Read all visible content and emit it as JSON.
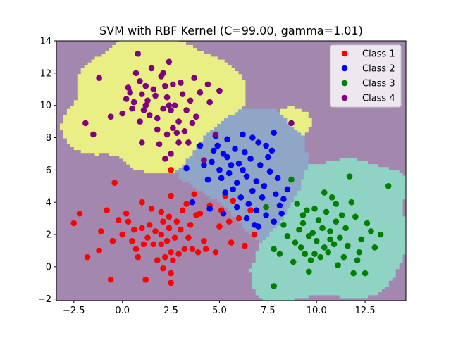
{
  "chart_data": {
    "type": "scatter",
    "title": "SVM with RBF Kernel (C=99.00, gamma=1.01)",
    "xlabel": "",
    "ylabel": "",
    "xlim": [
      -3.4,
      14.6
    ],
    "ylim": [
      -2.1,
      14.0
    ],
    "xticks": [
      -2.5,
      0.0,
      2.5,
      5.0,
      7.5,
      10.0,
      12.5
    ],
    "xtick_labels": [
      "−2.5",
      "0.0",
      "2.5",
      "5.0",
      "7.5",
      "10.0",
      "12.5"
    ],
    "yticks": [
      -2,
      0,
      2,
      4,
      6,
      8,
      10,
      12,
      14
    ],
    "ytick_labels": [
      "−2",
      "0",
      "2",
      "4",
      "6",
      "8",
      "10",
      "12",
      "14"
    ],
    "grid": false,
    "legend_position": "top-right",
    "background_color": "#a487ae",
    "series": [
      {
        "name": "Class 1",
        "color": "#ff0000",
        "region_color": null,
        "points": [
          [
            -2.5,
            2.7
          ],
          [
            -2.2,
            3.3
          ],
          [
            -1.8,
            0.6
          ],
          [
            -1.2,
            1.0
          ],
          [
            -1.1,
            2.2
          ],
          [
            -0.8,
            3.5
          ],
          [
            -0.6,
            -0.8
          ],
          [
            -0.5,
            1.6
          ],
          [
            -0.4,
            5.2
          ],
          [
            -0.2,
            2.9
          ],
          [
            0.0,
            2.0
          ],
          [
            0.2,
            3.3
          ],
          [
            0.3,
            2.8
          ],
          [
            0.5,
            1.6
          ],
          [
            0.6,
            2.3
          ],
          [
            0.7,
            1.1
          ],
          [
            0.8,
            0.6
          ],
          [
            1.0,
            2.4
          ],
          [
            1.0,
            4.0
          ],
          [
            1.1,
            1.4
          ],
          [
            1.2,
            -0.8
          ],
          [
            1.3,
            1.8
          ],
          [
            1.4,
            2.6
          ],
          [
            1.5,
            3.6
          ],
          [
            1.6,
            1.4
          ],
          [
            1.7,
            2.2
          ],
          [
            1.8,
            0.4
          ],
          [
            2.0,
            3.4
          ],
          [
            2.0,
            2.0
          ],
          [
            2.0,
            1.4
          ],
          [
            2.1,
            2.8
          ],
          [
            2.1,
            -0.1
          ],
          [
            2.2,
            0.6
          ],
          [
            2.3,
            1.6
          ],
          [
            2.4,
            2.4
          ],
          [
            2.4,
            3.1
          ],
          [
            2.5,
            0.9
          ],
          [
            2.5,
            -0.4
          ],
          [
            2.5,
            -1.0
          ],
          [
            2.5,
            4.4
          ],
          [
            2.5,
            6.0
          ],
          [
            2.6,
            0.4
          ],
          [
            2.7,
            1.8
          ],
          [
            2.8,
            2.8
          ],
          [
            2.9,
            0.8
          ],
          [
            3.0,
            2.3
          ],
          [
            3.1,
            3.5
          ],
          [
            3.2,
            1.1
          ],
          [
            3.3,
            3.9
          ],
          [
            3.4,
            1.8
          ],
          [
            3.5,
            2.6
          ],
          [
            3.6,
            1.1
          ],
          [
            3.7,
            4.5
          ],
          [
            3.8,
            3.2
          ],
          [
            3.9,
            0.9
          ],
          [
            4.0,
            3.3
          ],
          [
            4.2,
            1.6
          ],
          [
            4.3,
            1.1
          ],
          [
            4.5,
            3.8
          ],
          [
            4.8,
            0.9
          ],
          [
            5.0,
            2.5
          ],
          [
            5.1,
            3.5
          ],
          [
            5.3,
            4.4
          ],
          [
            5.5,
            2.8
          ],
          [
            5.7,
            4.1
          ],
          [
            6.0,
            3.0
          ],
          [
            6.3,
            1.3
          ],
          [
            6.6,
            3.5
          ],
          [
            6.8,
            2.0
          ],
          [
            5.6,
            1.5
          ]
        ]
      },
      {
        "name": "Class 2",
        "color": "#0000ff",
        "region_color": "#8fa6c7",
        "points": [
          [
            3.3,
            6.1
          ],
          [
            3.6,
            4.0
          ],
          [
            4.0,
            7.5
          ],
          [
            4.2,
            6.3
          ],
          [
            4.4,
            5.4
          ],
          [
            4.5,
            3.6
          ],
          [
            4.6,
            6.5
          ],
          [
            4.8,
            8.1
          ],
          [
            4.9,
            7.5
          ],
          [
            5.0,
            6.0
          ],
          [
            5.1,
            5.5
          ],
          [
            5.2,
            7.0
          ],
          [
            5.3,
            4.6
          ],
          [
            5.4,
            6.8
          ],
          [
            5.5,
            5.8
          ],
          [
            5.6,
            6.3
          ],
          [
            5.7,
            4.8
          ],
          [
            5.8,
            7.3
          ],
          [
            5.9,
            5.2
          ],
          [
            6.0,
            6.4
          ],
          [
            6.1,
            4.3
          ],
          [
            6.2,
            8.2
          ],
          [
            6.3,
            7.1
          ],
          [
            6.4,
            5.6
          ],
          [
            6.5,
            3.9
          ],
          [
            6.6,
            6.7
          ],
          [
            6.7,
            4.7
          ],
          [
            6.8,
            2.6
          ],
          [
            6.9,
            5.3
          ],
          [
            7.0,
            7.7
          ],
          [
            7.1,
            6.3
          ],
          [
            7.2,
            4.3
          ],
          [
            7.3,
            5.0
          ],
          [
            7.4,
            7.5
          ],
          [
            7.5,
            6.8
          ],
          [
            7.6,
            5.9
          ],
          [
            7.7,
            7.2
          ],
          [
            7.8,
            8.3
          ],
          [
            7.9,
            4.5
          ],
          [
            8.0,
            5.5
          ],
          [
            8.1,
            3.8
          ],
          [
            8.3,
            4.2
          ],
          [
            8.5,
            4.8
          ],
          [
            5.9,
            3.7
          ],
          [
            6.2,
            6.0
          ],
          [
            6.7,
            8.0
          ],
          [
            5.4,
            7.9
          ],
          [
            4.7,
            7.2
          ],
          [
            5.2,
            3.3
          ],
          [
            6.9,
            3.5
          ],
          [
            7.4,
            3.2
          ],
          [
            7.8,
            2.8
          ],
          [
            7.0,
            2.5
          ],
          [
            8.2,
            3.3
          ],
          [
            6.4,
            3.0
          ]
        ]
      },
      {
        "name": "Class 3",
        "color": "#008000",
        "region_color": "#8fd3c4",
        "points": [
          [
            7.4,
            3.7
          ],
          [
            7.8,
            1.1
          ],
          [
            7.8,
            -1.2
          ],
          [
            8.1,
            0.8
          ],
          [
            8.3,
            2.6
          ],
          [
            8.5,
            1.9
          ],
          [
            8.7,
            5.4
          ],
          [
            8.8,
            0.3
          ],
          [
            9.0,
            3.9
          ],
          [
            9.1,
            2.3
          ],
          [
            9.2,
            1.2
          ],
          [
            9.3,
            2.7
          ],
          [
            9.4,
            0.8
          ],
          [
            9.5,
            3.5
          ],
          [
            9.6,
            1.9
          ],
          [
            9.7,
            0.4
          ],
          [
            9.8,
            2.1
          ],
          [
            9.9,
            3.6
          ],
          [
            10.0,
            1.6
          ],
          [
            10.1,
            2.9
          ],
          [
            10.2,
            0.6
          ],
          [
            10.3,
            2.4
          ],
          [
            10.4,
            1.2
          ],
          [
            10.5,
            3.4
          ],
          [
            10.6,
            0.9
          ],
          [
            10.7,
            2.2
          ],
          [
            10.8,
            4.3
          ],
          [
            10.9,
            1.4
          ],
          [
            11.0,
            2.8
          ],
          [
            11.1,
            0.1
          ],
          [
            11.2,
            1.8
          ],
          [
            11.3,
            3.2
          ],
          [
            11.4,
            0.6
          ],
          [
            11.5,
            2.4
          ],
          [
            11.6,
            1.3
          ],
          [
            11.8,
            4.0
          ],
          [
            12.0,
            3.1
          ],
          [
            12.1,
            0.4
          ],
          [
            12.3,
            1.7
          ],
          [
            12.5,
            -0.4
          ],
          [
            12.6,
            2.7
          ],
          [
            12.8,
            2.2
          ],
          [
            13.0,
            1.2
          ],
          [
            13.3,
            2.0
          ],
          [
            13.7,
            5.0
          ],
          [
            11.7,
            5.6
          ],
          [
            10.4,
            4.6
          ],
          [
            9.3,
            3.2
          ],
          [
            8.9,
            1.5
          ],
          [
            9.9,
            0.8
          ],
          [
            11.0,
            3.9
          ],
          [
            12.2,
            0.9
          ],
          [
            10.7,
            1.7
          ],
          [
            9.6,
            -0.3
          ],
          [
            11.9,
            -0.4
          ]
        ]
      },
      {
        "name": "Class 4",
        "color": "#800080",
        "region_color": "#eaef85",
        "points": [
          [
            -1.9,
            8.9
          ],
          [
            -1.5,
            8.2
          ],
          [
            -1.2,
            11.7
          ],
          [
            -0.6,
            9.3
          ],
          [
            0.0,
            9.5
          ],
          [
            0.2,
            10.4
          ],
          [
            0.3,
            11.1
          ],
          [
            0.4,
            10.8
          ],
          [
            0.5,
            9.8
          ],
          [
            0.6,
            10.2
          ],
          [
            0.7,
            12.0
          ],
          [
            0.8,
            13.2
          ],
          [
            0.9,
            11.5
          ],
          [
            1.0,
            10.7
          ],
          [
            1.0,
            7.7
          ],
          [
            1.1,
            9.7
          ],
          [
            1.2,
            11.2
          ],
          [
            1.3,
            10.3
          ],
          [
            1.4,
            9.4
          ],
          [
            1.5,
            12.3
          ],
          [
            1.6,
            11.0
          ],
          [
            1.7,
            10.6
          ],
          [
            1.8,
            8.5
          ],
          [
            1.9,
            7.6
          ],
          [
            2.0,
            11.8
          ],
          [
            2.1,
            9.8
          ],
          [
            2.1,
            12.0
          ],
          [
            2.2,
            11.2
          ],
          [
            2.3,
            8.2
          ],
          [
            2.3,
            10.5
          ],
          [
            2.4,
            12.7
          ],
          [
            2.5,
            9.7
          ],
          [
            2.5,
            7.0
          ],
          [
            2.6,
            11.3
          ],
          [
            2.6,
            8.6
          ],
          [
            2.7,
            10.0
          ],
          [
            2.8,
            8.3
          ],
          [
            2.9,
            9.0
          ],
          [
            3.0,
            11.4
          ],
          [
            3.1,
            10.7
          ],
          [
            3.2,
            8.4
          ],
          [
            3.3,
            9.7
          ],
          [
            3.4,
            7.7
          ],
          [
            3.5,
            10.3
          ],
          [
            3.6,
            8.9
          ],
          [
            3.7,
            11.7
          ],
          [
            3.8,
            9.3
          ],
          [
            4.0,
            10.8
          ],
          [
            4.2,
            6.6
          ],
          [
            4.4,
            11.3
          ],
          [
            4.5,
            10.2
          ],
          [
            4.8,
            8.2
          ],
          [
            5.0,
            10.9
          ],
          [
            8.7,
            8.9
          ],
          [
            2.2,
            6.7
          ],
          [
            1.8,
            9.2
          ],
          [
            1.2,
            10.0
          ],
          [
            2.9,
            7.7
          ],
          [
            2.4,
            10.0
          ],
          [
            0.9,
            9.0
          ]
        ]
      }
    ],
    "legend": [
      "Class 1",
      "Class 2",
      "Class 3",
      "Class 4"
    ]
  }
}
